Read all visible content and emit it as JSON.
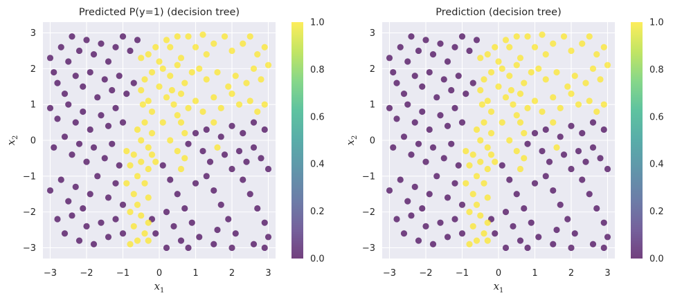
{
  "chart_data": [
    {
      "type": "scatter",
      "title": "Predicted P(y=1) (decision tree)",
      "xlabel": "x",
      "xlabel_sub": "1",
      "ylabel": "x",
      "ylabel_sub": "2",
      "xlim": [
        -3.2,
        3.2
      ],
      "ylim": [
        -3.3,
        3.3
      ],
      "xticks": [
        "−3",
        "−2",
        "−1",
        "0",
        "1",
        "2",
        "3"
      ],
      "yticks": [
        "−3",
        "−2",
        "−1",
        "0",
        "1",
        "2",
        "3"
      ],
      "grid": true,
      "colorbar": {
        "ticks": [
          "0.0",
          "0.2",
          "0.4",
          "0.6",
          "0.8",
          "1.0"
        ],
        "range": [
          0,
          1
        ]
      },
      "point_colors": {
        "class0": "#440154",
        "class1": "#fde725"
      },
      "points_class1": [
        [
          0.2,
          2.8
        ],
        [
          0.3,
          2.6
        ],
        [
          0.5,
          2.9
        ],
        [
          0.6,
          2.3
        ],
        [
          0.8,
          2.9
        ],
        [
          1.0,
          2.6
        ],
        [
          1.2,
          2.95
        ],
        [
          1.3,
          2.4
        ],
        [
          1.5,
          2.7
        ],
        [
          1.8,
          2.9
        ],
        [
          2.0,
          2.5
        ],
        [
          2.3,
          2.7
        ],
        [
          2.5,
          2.9
        ],
        [
          2.7,
          2.4
        ],
        [
          2.9,
          2.6
        ],
        [
          0.1,
          2.0
        ],
        [
          0.3,
          1.8
        ],
        [
          0.5,
          2.1
        ],
        [
          0.7,
          1.6
        ],
        [
          0.9,
          1.9
        ],
        [
          1.1,
          2.0
        ],
        [
          1.3,
          1.7
        ],
        [
          1.6,
          1.9
        ],
        [
          1.9,
          1.5
        ],
        [
          2.1,
          1.8
        ],
        [
          2.4,
          1.6
        ],
        [
          2.6,
          2.0
        ],
        [
          2.8,
          1.7
        ],
        [
          3.0,
          2.1
        ],
        [
          0.2,
          1.2
        ],
        [
          0.4,
          1.0
        ],
        [
          0.6,
          1.3
        ],
        [
          0.8,
          0.9
        ],
        [
          1.0,
          1.1
        ],
        [
          1.2,
          0.8
        ],
        [
          1.5,
          1.2
        ],
        [
          1.7,
          0.9
        ],
        [
          2.0,
          1.3
        ],
        [
          2.2,
          1.0
        ],
        [
          2.5,
          1.1
        ],
        [
          2.7,
          0.8
        ],
        [
          2.9,
          1.0
        ],
        [
          -0.1,
          2.6
        ],
        [
          -0.3,
          2.4
        ],
        [
          -0.5,
          2.3
        ],
        [
          0.0,
          2.2
        ],
        [
          -0.2,
          1.9
        ],
        [
          -0.4,
          1.7
        ],
        [
          -0.5,
          1.4
        ],
        [
          -0.3,
          1.1
        ],
        [
          -0.45,
          1.0
        ],
        [
          -0.2,
          0.8
        ],
        [
          -0.4,
          0.5
        ],
        [
          -0.6,
          0.3
        ],
        [
          -0.2,
          0.2
        ],
        [
          -0.5,
          0.0
        ],
        [
          -0.3,
          -0.2
        ],
        [
          -0.7,
          -0.4
        ],
        [
          -0.9,
          -0.3
        ],
        [
          -0.2,
          -0.4
        ],
        [
          -0.5,
          -0.6
        ],
        [
          -0.8,
          -0.7
        ],
        [
          -0.3,
          -0.8
        ],
        [
          -0.6,
          -1.0
        ],
        [
          -0.9,
          -1.2
        ],
        [
          -0.4,
          -1.2
        ],
        [
          -0.7,
          -1.5
        ],
        [
          -0.3,
          -1.6
        ],
        [
          -0.6,
          -1.8
        ],
        [
          -0.8,
          -2.0
        ],
        [
          -0.5,
          -2.1
        ],
        [
          -0.3,
          -2.3
        ],
        [
          -0.7,
          -2.4
        ],
        [
          -0.4,
          -2.6
        ],
        [
          -0.6,
          -2.8
        ],
        [
          -0.8,
          -2.9
        ],
        [
          -0.3,
          -2.8
        ],
        [
          0.5,
          0.7
        ],
        [
          0.6,
          0.5
        ],
        [
          0.7,
          0.2
        ],
        [
          0.5,
          -0.3
        ],
        [
          0.7,
          -0.5
        ],
        [
          0.6,
          -0.8
        ],
        [
          1.5,
          0.5
        ],
        [
          1.6,
          -0.2
        ],
        [
          0.1,
          0.5
        ],
        [
          0.3,
          0.0
        ],
        [
          -0.1,
          -0.6
        ],
        [
          0.0,
          1.5
        ],
        [
          0.35,
          1.4
        ]
      ],
      "points_class0": [
        [
          -3.0,
          2.3
        ],
        [
          -2.9,
          1.9
        ],
        [
          -2.7,
          2.6
        ],
        [
          -2.5,
          2.2
        ],
        [
          -2.4,
          2.9
        ],
        [
          -2.2,
          2.5
        ],
        [
          -2.0,
          2.8
        ],
        [
          -1.8,
          2.4
        ],
        [
          -1.6,
          2.7
        ],
        [
          -1.4,
          2.2
        ],
        [
          -1.2,
          2.6
        ],
        [
          -1.0,
          2.9
        ],
        [
          -0.8,
          2.5
        ],
        [
          -0.6,
          2.8
        ],
        [
          -2.8,
          1.6
        ],
        [
          -2.6,
          1.3
        ],
        [
          -2.3,
          1.8
        ],
        [
          -2.1,
          1.5
        ],
        [
          -1.9,
          1.9
        ],
        [
          -1.7,
          1.2
        ],
        [
          -1.5,
          1.7
        ],
        [
          -1.3,
          1.4
        ],
        [
          -1.1,
          1.8
        ],
        [
          -0.9,
          1.3
        ],
        [
          -0.7,
          1.6
        ],
        [
          -3.0,
          0.9
        ],
        [
          -2.8,
          0.6
        ],
        [
          -2.5,
          1.0
        ],
        [
          -2.3,
          0.5
        ],
        [
          -2.1,
          0.8
        ],
        [
          -1.9,
          0.3
        ],
        [
          -1.6,
          0.7
        ],
        [
          -1.4,
          0.4
        ],
        [
          -1.2,
          0.9
        ],
        [
          -1.0,
          0.5
        ],
        [
          -2.9,
          -0.2
        ],
        [
          -2.6,
          0.1
        ],
        [
          -2.4,
          -0.4
        ],
        [
          -2.2,
          -0.1
        ],
        [
          -2.0,
          -0.6
        ],
        [
          -1.8,
          -0.2
        ],
        [
          -1.5,
          -0.5
        ],
        [
          -1.3,
          -0.1
        ],
        [
          -1.1,
          -0.7
        ],
        [
          -3.0,
          -1.4
        ],
        [
          -2.7,
          -1.1
        ],
        [
          -2.5,
          -1.7
        ],
        [
          -2.3,
          -1.3
        ],
        [
          -2.1,
          -1.9
        ],
        [
          -1.9,
          -1.5
        ],
        [
          -1.7,
          -1.0
        ],
        [
          -1.4,
          -1.6
        ],
        [
          -1.2,
          -1.2
        ],
        [
          -1.0,
          -1.8
        ],
        [
          -2.8,
          -2.2
        ],
        [
          -2.6,
          -2.6
        ],
        [
          -2.4,
          -2.1
        ],
        [
          -2.2,
          -2.8
        ],
        [
          -2.0,
          -2.4
        ],
        [
          -1.8,
          -2.9
        ],
        [
          -1.6,
          -2.3
        ],
        [
          -1.4,
          -2.7
        ],
        [
          -1.2,
          -2.2
        ],
        [
          -1.0,
          -2.6
        ],
        [
          0.1,
          -0.7
        ],
        [
          0.3,
          -1.1
        ],
        [
          0.5,
          -1.5
        ],
        [
          0.7,
          -1.9
        ],
        [
          0.9,
          -2.3
        ],
        [
          1.1,
          -2.7
        ],
        [
          1.3,
          -1.0
        ],
        [
          1.5,
          -1.4
        ],
        [
          1.7,
          -1.8
        ],
        [
          1.9,
          -2.2
        ],
        [
          2.1,
          -2.6
        ],
        [
          2.3,
          -1.1
        ],
        [
          2.5,
          -1.5
        ],
        [
          2.7,
          -1.9
        ],
        [
          2.9,
          -2.3
        ],
        [
          3.0,
          -2.7
        ],
        [
          0.2,
          -2.0
        ],
        [
          0.4,
          -2.4
        ],
        [
          0.6,
          -2.8
        ],
        [
          1.0,
          -1.2
        ],
        [
          1.2,
          -0.3
        ],
        [
          1.4,
          -0.6
        ],
        [
          1.8,
          -0.4
        ],
        [
          2.0,
          -0.8
        ],
        [
          2.2,
          -0.3
        ],
        [
          2.4,
          -0.6
        ],
        [
          2.6,
          -0.2
        ],
        [
          2.8,
          -0.5
        ],
        [
          3.0,
          -0.8
        ],
        [
          0.8,
          -0.1
        ],
        [
          1.0,
          0.2
        ],
        [
          1.3,
          0.3
        ],
        [
          1.7,
          0.1
        ],
        [
          2.0,
          0.4
        ],
        [
          2.3,
          0.2
        ],
        [
          2.6,
          0.5
        ],
        [
          2.9,
          0.3
        ],
        [
          0.2,
          -3.0
        ],
        [
          0.8,
          -3.0
        ],
        [
          1.5,
          -2.9
        ],
        [
          2.0,
          -3.0
        ],
        [
          2.6,
          -2.9
        ],
        [
          2.9,
          -3.0
        ],
        [
          -0.2,
          -2.2
        ],
        [
          -0.1,
          -2.6
        ],
        [
          1.6,
          -2.5
        ]
      ]
    },
    {
      "type": "scatter",
      "title": "Prediction (decision tree)",
      "xlabel": "x",
      "xlabel_sub": "1",
      "ylabel": "x",
      "ylabel_sub": "2",
      "xlim": [
        -3.2,
        3.2
      ],
      "ylim": [
        -3.3,
        3.3
      ],
      "xticks": [
        "−3",
        "−2",
        "−1",
        "0",
        "1",
        "2",
        "3"
      ],
      "yticks": [
        "−3",
        "−2",
        "−1",
        "0",
        "1",
        "2",
        "3"
      ],
      "grid": true,
      "colorbar": {
        "ticks": [
          "0.0",
          "0.2",
          "0.4",
          "0.6",
          "0.8",
          "1.0"
        ],
        "range": [
          0,
          1
        ]
      },
      "point_colors": {
        "class0": "#440154",
        "class1": "#fde725"
      },
      "same_points_as": 0
    }
  ]
}
